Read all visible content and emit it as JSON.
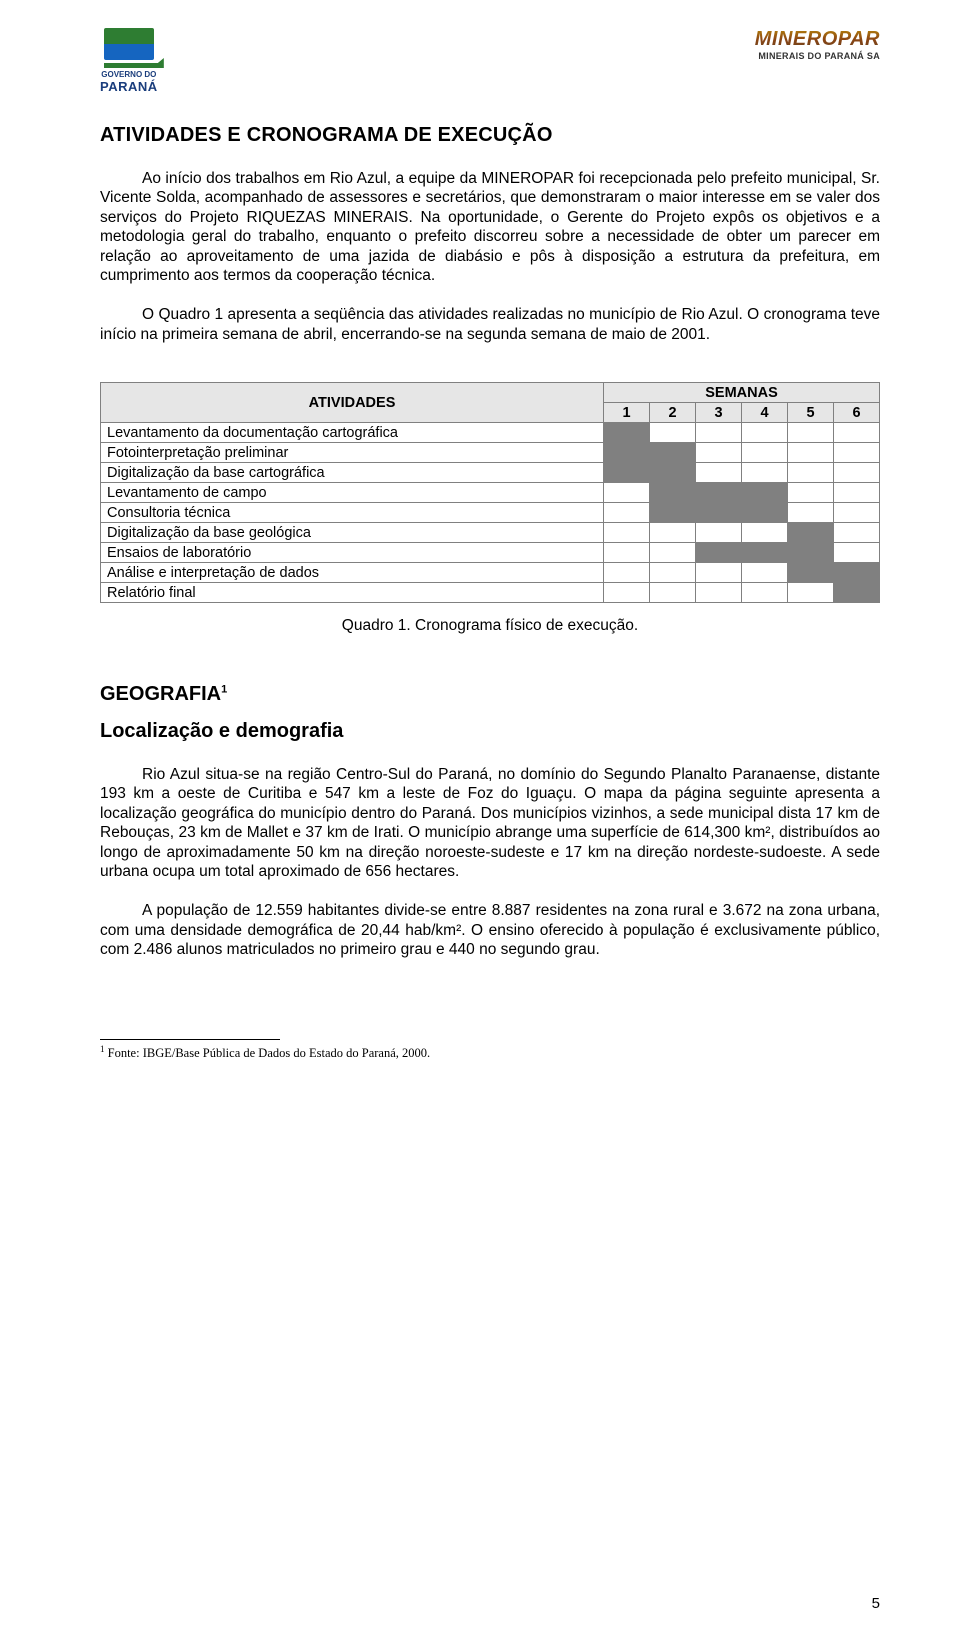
{
  "header": {
    "left_logo_line1": "GOVERNO DO",
    "left_logo_line2": "PARANÁ",
    "right_logo_main": "MINEROPAR",
    "right_logo_sub": "MINERAIS DO PARANÁ SA"
  },
  "section1": {
    "title": "ATIVIDADES E CRONOGRAMA DE EXECUÇÃO",
    "para1": "Ao início dos trabalhos em Rio Azul, a equipe da MINEROPAR foi recepcionada pelo prefeito municipal, Sr. Vicente Solda, acompanhado de assessores e secretários, que demonstraram o maior interesse em se valer dos serviços do Projeto RIQUEZAS MINERAIS. Na oportunidade, o Gerente do Projeto expôs os objetivos e a metodologia geral do trabalho, enquanto o prefeito discorreu sobre a necessidade de obter um parecer em relação ao aproveitamento de uma jazida de diabásio e pôs à disposição a estrutura da prefeitura, em cumprimento aos termos da cooperação técnica.",
    "para2": "O Quadro 1 apresenta a seqüência das atividades realizadas no município de Rio Azul. O cronograma teve início na primeira semana de abril, encerrando-se na segunda semana de maio de 2001."
  },
  "schedule": {
    "header_activities": "ATIVIDADES",
    "header_weeks": "SEMANAS",
    "week_labels": [
      "1",
      "2",
      "3",
      "4",
      "5",
      "6"
    ],
    "rows": [
      {
        "label": "Levantamento da documentação cartográfica",
        "weeks": [
          true,
          false,
          false,
          false,
          false,
          false
        ]
      },
      {
        "label": "Fotointerpretação preliminar",
        "weeks": [
          true,
          true,
          false,
          false,
          false,
          false
        ]
      },
      {
        "label": "Digitalização da base cartográfica",
        "weeks": [
          true,
          true,
          false,
          false,
          false,
          false
        ]
      },
      {
        "label": "Levantamento de campo",
        "weeks": [
          false,
          true,
          true,
          true,
          false,
          false
        ]
      },
      {
        "label": "Consultoria técnica",
        "weeks": [
          false,
          true,
          true,
          true,
          false,
          false
        ]
      },
      {
        "label": "Digitalização da base geológica",
        "weeks": [
          false,
          false,
          false,
          false,
          true,
          false
        ]
      },
      {
        "label": "Ensaios de laboratório",
        "weeks": [
          false,
          false,
          true,
          true,
          true,
          false
        ]
      },
      {
        "label": "Análise e interpretação de dados",
        "weeks": [
          false,
          false,
          false,
          false,
          true,
          true
        ]
      },
      {
        "label": "Relatório final",
        "weeks": [
          false,
          false,
          false,
          false,
          false,
          true
        ]
      }
    ],
    "caption": "Quadro 1. Cronograma físico de execução.",
    "colors": {
      "header_bg": "#e6e6e6",
      "filled_bg": "#808080",
      "border": "#808080"
    }
  },
  "section2": {
    "title_prefix": "GEOGRAFIA",
    "title_sup": "1",
    "subtitle": "Localização e demografia",
    "para1": "Rio Azul situa-se na região Centro-Sul do Paraná, no domínio do Segundo Planalto Paranaense, distante 193 km a oeste de Curitiba e 547 km a leste de Foz do Iguaçu. O mapa da página seguinte apresenta a localização geográfica do município dentro do Paraná. Dos municípios vizinhos, a sede municipal dista 17 km de Rebouças, 23 km de Mallet e 37 km de Irati. O município abrange uma superfície de 614,300 km², distribuídos ao longo de aproximadamente 50 km na direção noroeste-sudeste e 17 km na direção nordeste-sudoeste. A sede urbana ocupa um total aproximado de 656 hectares.",
    "para2": "A população de 12.559 habitantes divide-se entre 8.887 residentes na zona rural e 3.672 na zona urbana, com uma densidade demográfica de 20,44 hab/km². O ensino oferecido à população é exclusivamente público, com 2.486 alunos matriculados no primeiro grau e 440 no segundo grau."
  },
  "footnote": {
    "marker": "1",
    "text": " Fonte: IBGE/Base Pública de Dados do Estado do Paraná, 2000."
  },
  "page_number": "5"
}
